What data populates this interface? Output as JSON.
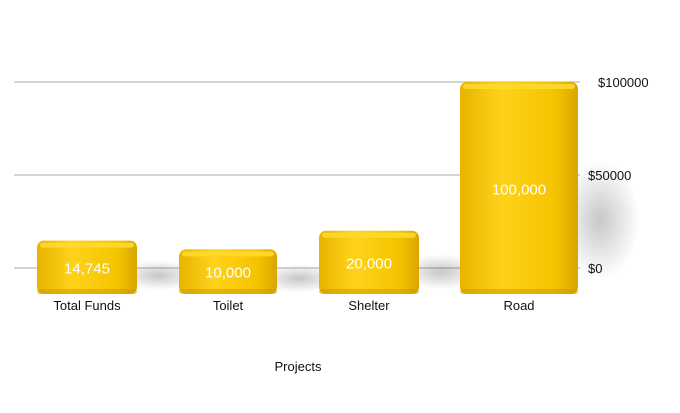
{
  "chart_data": {
    "type": "bar",
    "title": "",
    "xlabel": "Projects",
    "ylabel": "",
    "categories": [
      "Total Funds",
      "Toilet",
      "Shelter",
      "Road"
    ],
    "values": [
      14745,
      10000,
      20000,
      100000
    ],
    "value_labels": [
      "14,745",
      "10,000",
      "20,000",
      "100,000"
    ],
    "yticks": [
      0,
      50000,
      100000
    ],
    "ytick_labels": [
      "$0",
      "$50000",
      "$100000"
    ],
    "ylim": [
      0,
      100000
    ],
    "axis_side": "right",
    "grid": true,
    "bar_color": "#F2C200",
    "bar_top_color": "#FFD92E"
  }
}
